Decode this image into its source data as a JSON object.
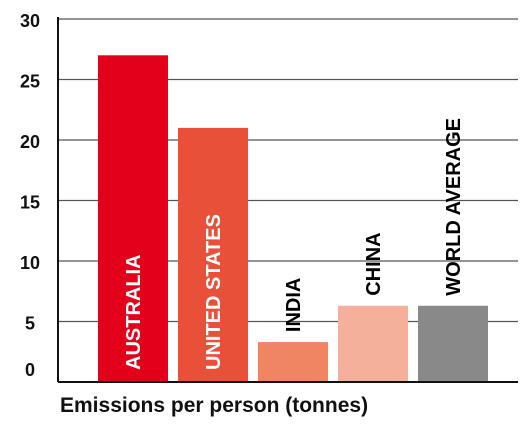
{
  "chart_data": {
    "type": "bar",
    "categories": [
      "AUSTRALIA",
      "UNITED STATES",
      "INDIA",
      "CHINA",
      "WORLD AVERAGE"
    ],
    "values": [
      27,
      21,
      3.3,
      6.3,
      6.3
    ],
    "colors": [
      "#e2001a",
      "#e9503a",
      "#f08563",
      "#f4b09a",
      "#898989"
    ],
    "label_colors": [
      "#ffffff",
      "#ffffff",
      "#000000",
      "#000000",
      "#000000"
    ],
    "label_inside": [
      true,
      true,
      false,
      false,
      false
    ],
    "xlabel": "Emissions per person (tonnes)",
    "ylabel": "",
    "ylim": [
      0,
      30
    ],
    "yticks": [
      0,
      5,
      10,
      15,
      20,
      25,
      30
    ],
    "grid": true
  }
}
